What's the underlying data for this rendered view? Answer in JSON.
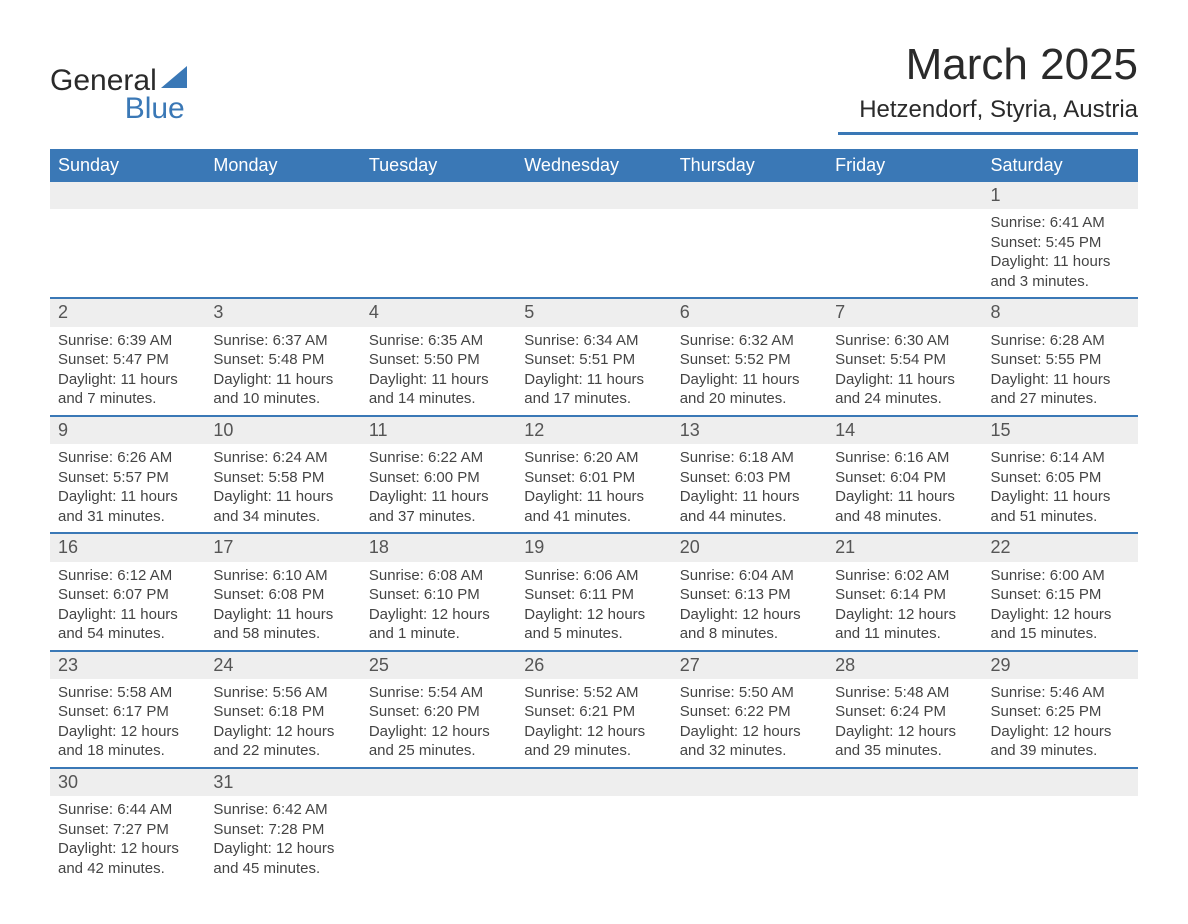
{
  "logo": {
    "text1": "General",
    "text2": "Blue"
  },
  "title": "March 2025",
  "location": "Hetzendorf, Styria, Austria",
  "weekdays": [
    "Sunday",
    "Monday",
    "Tuesday",
    "Wednesday",
    "Thursday",
    "Friday",
    "Saturday"
  ],
  "colors": {
    "header_bg": "#3a78b6",
    "header_text": "#ffffff",
    "daynum_bg": "#eeeeee",
    "border": "#3a78b6",
    "text": "#444444",
    "page_bg": "#ffffff"
  },
  "weeks": [
    [
      null,
      null,
      null,
      null,
      null,
      null,
      {
        "n": "1",
        "sunrise": "Sunrise: 6:41 AM",
        "sunset": "Sunset: 5:45 PM",
        "day1": "Daylight: 11 hours",
        "day2": "and 3 minutes."
      }
    ],
    [
      {
        "n": "2",
        "sunrise": "Sunrise: 6:39 AM",
        "sunset": "Sunset: 5:47 PM",
        "day1": "Daylight: 11 hours",
        "day2": "and 7 minutes."
      },
      {
        "n": "3",
        "sunrise": "Sunrise: 6:37 AM",
        "sunset": "Sunset: 5:48 PM",
        "day1": "Daylight: 11 hours",
        "day2": "and 10 minutes."
      },
      {
        "n": "4",
        "sunrise": "Sunrise: 6:35 AM",
        "sunset": "Sunset: 5:50 PM",
        "day1": "Daylight: 11 hours",
        "day2": "and 14 minutes."
      },
      {
        "n": "5",
        "sunrise": "Sunrise: 6:34 AM",
        "sunset": "Sunset: 5:51 PM",
        "day1": "Daylight: 11 hours",
        "day2": "and 17 minutes."
      },
      {
        "n": "6",
        "sunrise": "Sunrise: 6:32 AM",
        "sunset": "Sunset: 5:52 PM",
        "day1": "Daylight: 11 hours",
        "day2": "and 20 minutes."
      },
      {
        "n": "7",
        "sunrise": "Sunrise: 6:30 AM",
        "sunset": "Sunset: 5:54 PM",
        "day1": "Daylight: 11 hours",
        "day2": "and 24 minutes."
      },
      {
        "n": "8",
        "sunrise": "Sunrise: 6:28 AM",
        "sunset": "Sunset: 5:55 PM",
        "day1": "Daylight: 11 hours",
        "day2": "and 27 minutes."
      }
    ],
    [
      {
        "n": "9",
        "sunrise": "Sunrise: 6:26 AM",
        "sunset": "Sunset: 5:57 PM",
        "day1": "Daylight: 11 hours",
        "day2": "and 31 minutes."
      },
      {
        "n": "10",
        "sunrise": "Sunrise: 6:24 AM",
        "sunset": "Sunset: 5:58 PM",
        "day1": "Daylight: 11 hours",
        "day2": "and 34 minutes."
      },
      {
        "n": "11",
        "sunrise": "Sunrise: 6:22 AM",
        "sunset": "Sunset: 6:00 PM",
        "day1": "Daylight: 11 hours",
        "day2": "and 37 minutes."
      },
      {
        "n": "12",
        "sunrise": "Sunrise: 6:20 AM",
        "sunset": "Sunset: 6:01 PM",
        "day1": "Daylight: 11 hours",
        "day2": "and 41 minutes."
      },
      {
        "n": "13",
        "sunrise": "Sunrise: 6:18 AM",
        "sunset": "Sunset: 6:03 PM",
        "day1": "Daylight: 11 hours",
        "day2": "and 44 minutes."
      },
      {
        "n": "14",
        "sunrise": "Sunrise: 6:16 AM",
        "sunset": "Sunset: 6:04 PM",
        "day1": "Daylight: 11 hours",
        "day2": "and 48 minutes."
      },
      {
        "n": "15",
        "sunrise": "Sunrise: 6:14 AM",
        "sunset": "Sunset: 6:05 PM",
        "day1": "Daylight: 11 hours",
        "day2": "and 51 minutes."
      }
    ],
    [
      {
        "n": "16",
        "sunrise": "Sunrise: 6:12 AM",
        "sunset": "Sunset: 6:07 PM",
        "day1": "Daylight: 11 hours",
        "day2": "and 54 minutes."
      },
      {
        "n": "17",
        "sunrise": "Sunrise: 6:10 AM",
        "sunset": "Sunset: 6:08 PM",
        "day1": "Daylight: 11 hours",
        "day2": "and 58 minutes."
      },
      {
        "n": "18",
        "sunrise": "Sunrise: 6:08 AM",
        "sunset": "Sunset: 6:10 PM",
        "day1": "Daylight: 12 hours",
        "day2": "and 1 minute."
      },
      {
        "n": "19",
        "sunrise": "Sunrise: 6:06 AM",
        "sunset": "Sunset: 6:11 PM",
        "day1": "Daylight: 12 hours",
        "day2": "and 5 minutes."
      },
      {
        "n": "20",
        "sunrise": "Sunrise: 6:04 AM",
        "sunset": "Sunset: 6:13 PM",
        "day1": "Daylight: 12 hours",
        "day2": "and 8 minutes."
      },
      {
        "n": "21",
        "sunrise": "Sunrise: 6:02 AM",
        "sunset": "Sunset: 6:14 PM",
        "day1": "Daylight: 12 hours",
        "day2": "and 11 minutes."
      },
      {
        "n": "22",
        "sunrise": "Sunrise: 6:00 AM",
        "sunset": "Sunset: 6:15 PM",
        "day1": "Daylight: 12 hours",
        "day2": "and 15 minutes."
      }
    ],
    [
      {
        "n": "23",
        "sunrise": "Sunrise: 5:58 AM",
        "sunset": "Sunset: 6:17 PM",
        "day1": "Daylight: 12 hours",
        "day2": "and 18 minutes."
      },
      {
        "n": "24",
        "sunrise": "Sunrise: 5:56 AM",
        "sunset": "Sunset: 6:18 PM",
        "day1": "Daylight: 12 hours",
        "day2": "and 22 minutes."
      },
      {
        "n": "25",
        "sunrise": "Sunrise: 5:54 AM",
        "sunset": "Sunset: 6:20 PM",
        "day1": "Daylight: 12 hours",
        "day2": "and 25 minutes."
      },
      {
        "n": "26",
        "sunrise": "Sunrise: 5:52 AM",
        "sunset": "Sunset: 6:21 PM",
        "day1": "Daylight: 12 hours",
        "day2": "and 29 minutes."
      },
      {
        "n": "27",
        "sunrise": "Sunrise: 5:50 AM",
        "sunset": "Sunset: 6:22 PM",
        "day1": "Daylight: 12 hours",
        "day2": "and 32 minutes."
      },
      {
        "n": "28",
        "sunrise": "Sunrise: 5:48 AM",
        "sunset": "Sunset: 6:24 PM",
        "day1": "Daylight: 12 hours",
        "day2": "and 35 minutes."
      },
      {
        "n": "29",
        "sunrise": "Sunrise: 5:46 AM",
        "sunset": "Sunset: 6:25 PM",
        "day1": "Daylight: 12 hours",
        "day2": "and 39 minutes."
      }
    ],
    [
      {
        "n": "30",
        "sunrise": "Sunrise: 6:44 AM",
        "sunset": "Sunset: 7:27 PM",
        "day1": "Daylight: 12 hours",
        "day2": "and 42 minutes."
      },
      {
        "n": "31",
        "sunrise": "Sunrise: 6:42 AM",
        "sunset": "Sunset: 7:28 PM",
        "day1": "Daylight: 12 hours",
        "day2": "and 45 minutes."
      },
      null,
      null,
      null,
      null,
      null
    ]
  ]
}
